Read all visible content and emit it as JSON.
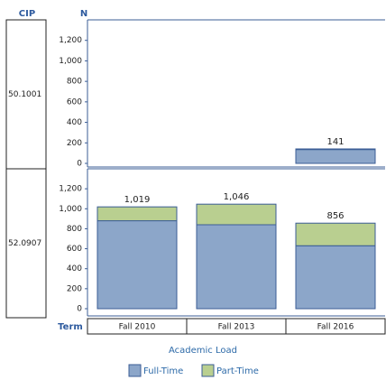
{
  "chart_data": {
    "type": "bar",
    "stacked": true,
    "row_header": "CIP",
    "y_label": "N",
    "x_label": "Term",
    "legend_title": "Academic Load",
    "categories": [
      "Fall 2010",
      "Fall 2013",
      "Fall 2016"
    ],
    "series": [
      {
        "name": "Full-Time",
        "color": "#8ca6c9"
      },
      {
        "name": "Part-Time",
        "color": "#b9cf90"
      }
    ],
    "ylim": [
      0,
      1400
    ],
    "yticks": [
      0,
      200,
      400,
      600,
      800,
      {
        "value": 1000,
        "label": "1,000"
      },
      {
        "value": 1200,
        "label": "1,200"
      }
    ],
    "panels": [
      {
        "name": "50.1001",
        "values": [
          [
            null,
            null,
            135
          ],
          [
            null,
            null,
            6
          ]
        ],
        "totals": [
          null,
          null,
          141
        ],
        "value_labels": [
          null,
          null,
          "141"
        ]
      },
      {
        "name": "52.0907",
        "values": [
          [
            880,
            840,
            630
          ],
          [
            139,
            206,
            226
          ]
        ],
        "totals": [
          1019,
          1046,
          856
        ],
        "value_labels": [
          "1,019",
          "1,046",
          "856"
        ]
      }
    ]
  }
}
